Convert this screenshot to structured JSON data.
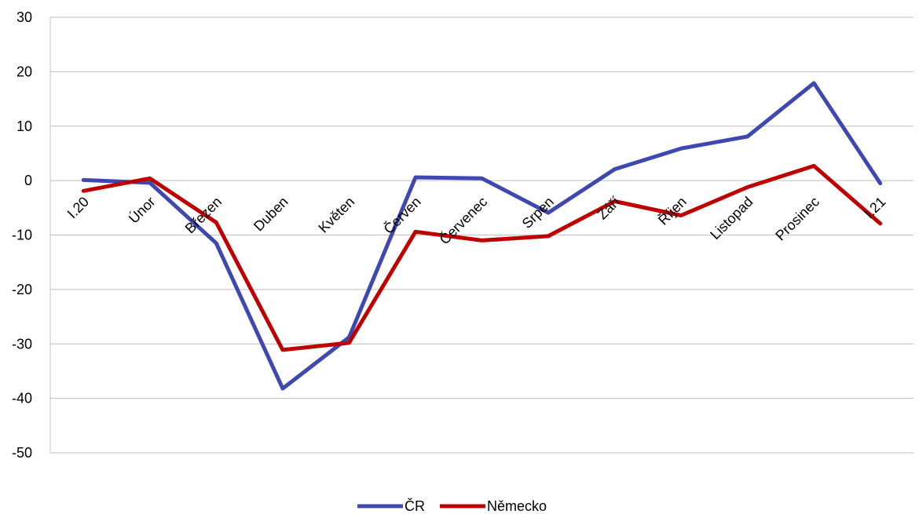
{
  "chart_data": {
    "type": "line",
    "title": "",
    "xlabel": "",
    "ylabel": "",
    "ylim": [
      -50,
      30
    ],
    "yticks": [
      30,
      20,
      10,
      0,
      -10,
      -20,
      -30,
      -40,
      -50
    ],
    "grid": true,
    "legend_position": "bottom",
    "categories": [
      "I.20",
      "Únor",
      "Březen",
      "Duben",
      "Květen",
      "Červen",
      "Červenec",
      "Srpen",
      "Září",
      "Říjen",
      "Listopad",
      "Prosinec",
      "I.21"
    ],
    "series": [
      {
        "name": "ČR",
        "color": "#3f48b0",
        "values": [
          0.1,
          -0.4,
          -11.5,
          -38.2,
          -28.8,
          0.6,
          0.4,
          -5.9,
          2.1,
          5.9,
          8.1,
          17.9,
          -0.5
        ]
      },
      {
        "name": "Německo",
        "color": "#c00000",
        "values": [
          -1.9,
          0.4,
          -7.7,
          -31.1,
          -29.8,
          -9.4,
          -11.0,
          -10.2,
          -3.8,
          -6.4,
          -1.2,
          2.7,
          -7.9
        ]
      }
    ]
  }
}
